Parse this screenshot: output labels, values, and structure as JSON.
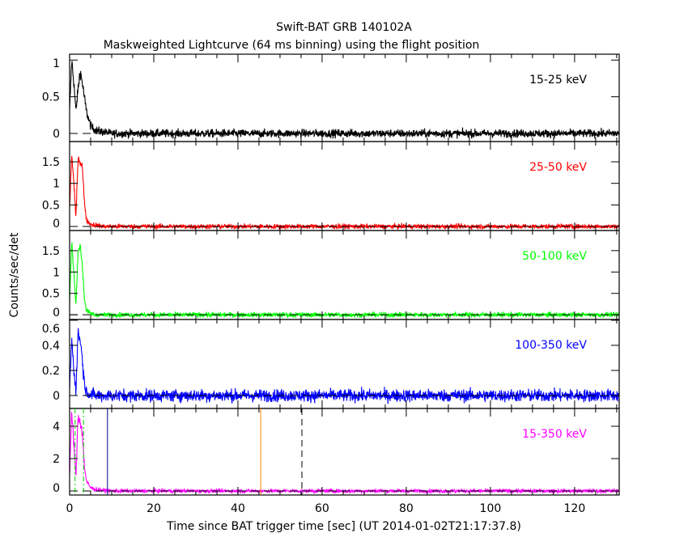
{
  "chart_data": {
    "type": "line",
    "title": "Swift-BAT GRB 140102A",
    "subtitle": "Maskweighted Lightcurve (64 ms binning) using the flight position",
    "xlabel": "Time since BAT trigger time [sec] (UT 2014-01-02T21:17:37.8)",
    "ylabel": "Counts/sec/det",
    "xlim": [
      0,
      130.6
    ],
    "x_ticks": [
      "0",
      "20",
      "40",
      "60",
      "80",
      "100",
      "120"
    ],
    "x_tick_values": [
      0,
      20,
      40,
      60,
      80,
      100,
      120
    ],
    "profile_times": [
      0,
      0.5,
      1,
      1.5,
      2,
      2.5,
      3,
      3.5,
      4,
      5,
      6,
      8,
      10,
      130.6
    ],
    "panels": [
      {
        "name": "15-25 keV",
        "color": "#000000",
        "ylim": [
          -0.11,
          1.08
        ],
        "y_ticks": [
          "0",
          "0.5",
          "1"
        ],
        "y_tick_values": [
          0,
          0.5,
          1
        ],
        "noise": 0.028,
        "profile": [
          0.3,
          1.0,
          0.7,
          0.3,
          0.6,
          0.85,
          0.7,
          0.5,
          0.3,
          0.1,
          0.05,
          0.02,
          0,
          0
        ]
      },
      {
        "name": "25-50 keV",
        "color": "#ff0000",
        "ylim": [
          -0.094,
          1.97
        ],
        "y_ticks": [
          "0",
          "0.5",
          "1",
          "1.5"
        ],
        "y_tick_values": [
          0,
          0.5,
          1,
          1.5
        ],
        "noise": 0.028,
        "profile": [
          0.4,
          1.7,
          1.0,
          0.2,
          1.6,
          1.5,
          1.4,
          0.6,
          0.15,
          0.05,
          0.03,
          0,
          0,
          0
        ]
      },
      {
        "name": "50-100 keV",
        "color": "#00ff00",
        "ylim": [
          -0.11,
          1.97
        ],
        "y_ticks": [
          "0",
          "0.5",
          "1",
          "1.5"
        ],
        "y_tick_values": [
          0,
          0.5,
          1,
          1.5
        ],
        "noise": 0.028,
        "profile": [
          0.3,
          1.7,
          1.0,
          0.2,
          1.5,
          1.6,
          1.2,
          0.4,
          0.1,
          0.03,
          0,
          0,
          0,
          0
        ]
      },
      {
        "name": "100-350 keV",
        "color": "#0000ff",
        "ylim": [
          -0.103,
          0.606
        ],
        "y_ticks": [
          "0",
          "0.2",
          "0.4",
          "0.6"
        ],
        "y_tick_values": [
          0,
          0.2,
          0.4,
          0.6
        ],
        "noise": 0.025,
        "profile": [
          0.05,
          0.45,
          0.2,
          0.05,
          0.5,
          0.45,
          0.3,
          0.1,
          0.03,
          0.01,
          0,
          0,
          0,
          0
        ]
      },
      {
        "name": "15-350 keV",
        "color": "#ff00ff",
        "ylim": [
          -0.25,
          5.1
        ],
        "y_ticks": [
          "0",
          "2",
          "4"
        ],
        "y_tick_values": [
          0,
          2,
          4
        ],
        "noise": 0.06,
        "profile": [
          1.0,
          4.8,
          3.0,
          0.8,
          4.6,
          4.4,
          3.6,
          1.6,
          0.6,
          0.2,
          0.1,
          0.03,
          0,
          0
        ]
      }
    ],
    "markers": [
      {
        "x": 1.3,
        "color": "#00cc00",
        "style": "dashdot"
      },
      {
        "x": 3.3,
        "color": "#00cc00",
        "style": "dashdot"
      },
      {
        "x": 9.0,
        "color": "#000080",
        "style": "solid"
      },
      {
        "x": 45.4,
        "color": "#ff8000",
        "style": "solid"
      },
      {
        "x": 55.2,
        "color": "#000000",
        "style": "dashed"
      }
    ]
  }
}
